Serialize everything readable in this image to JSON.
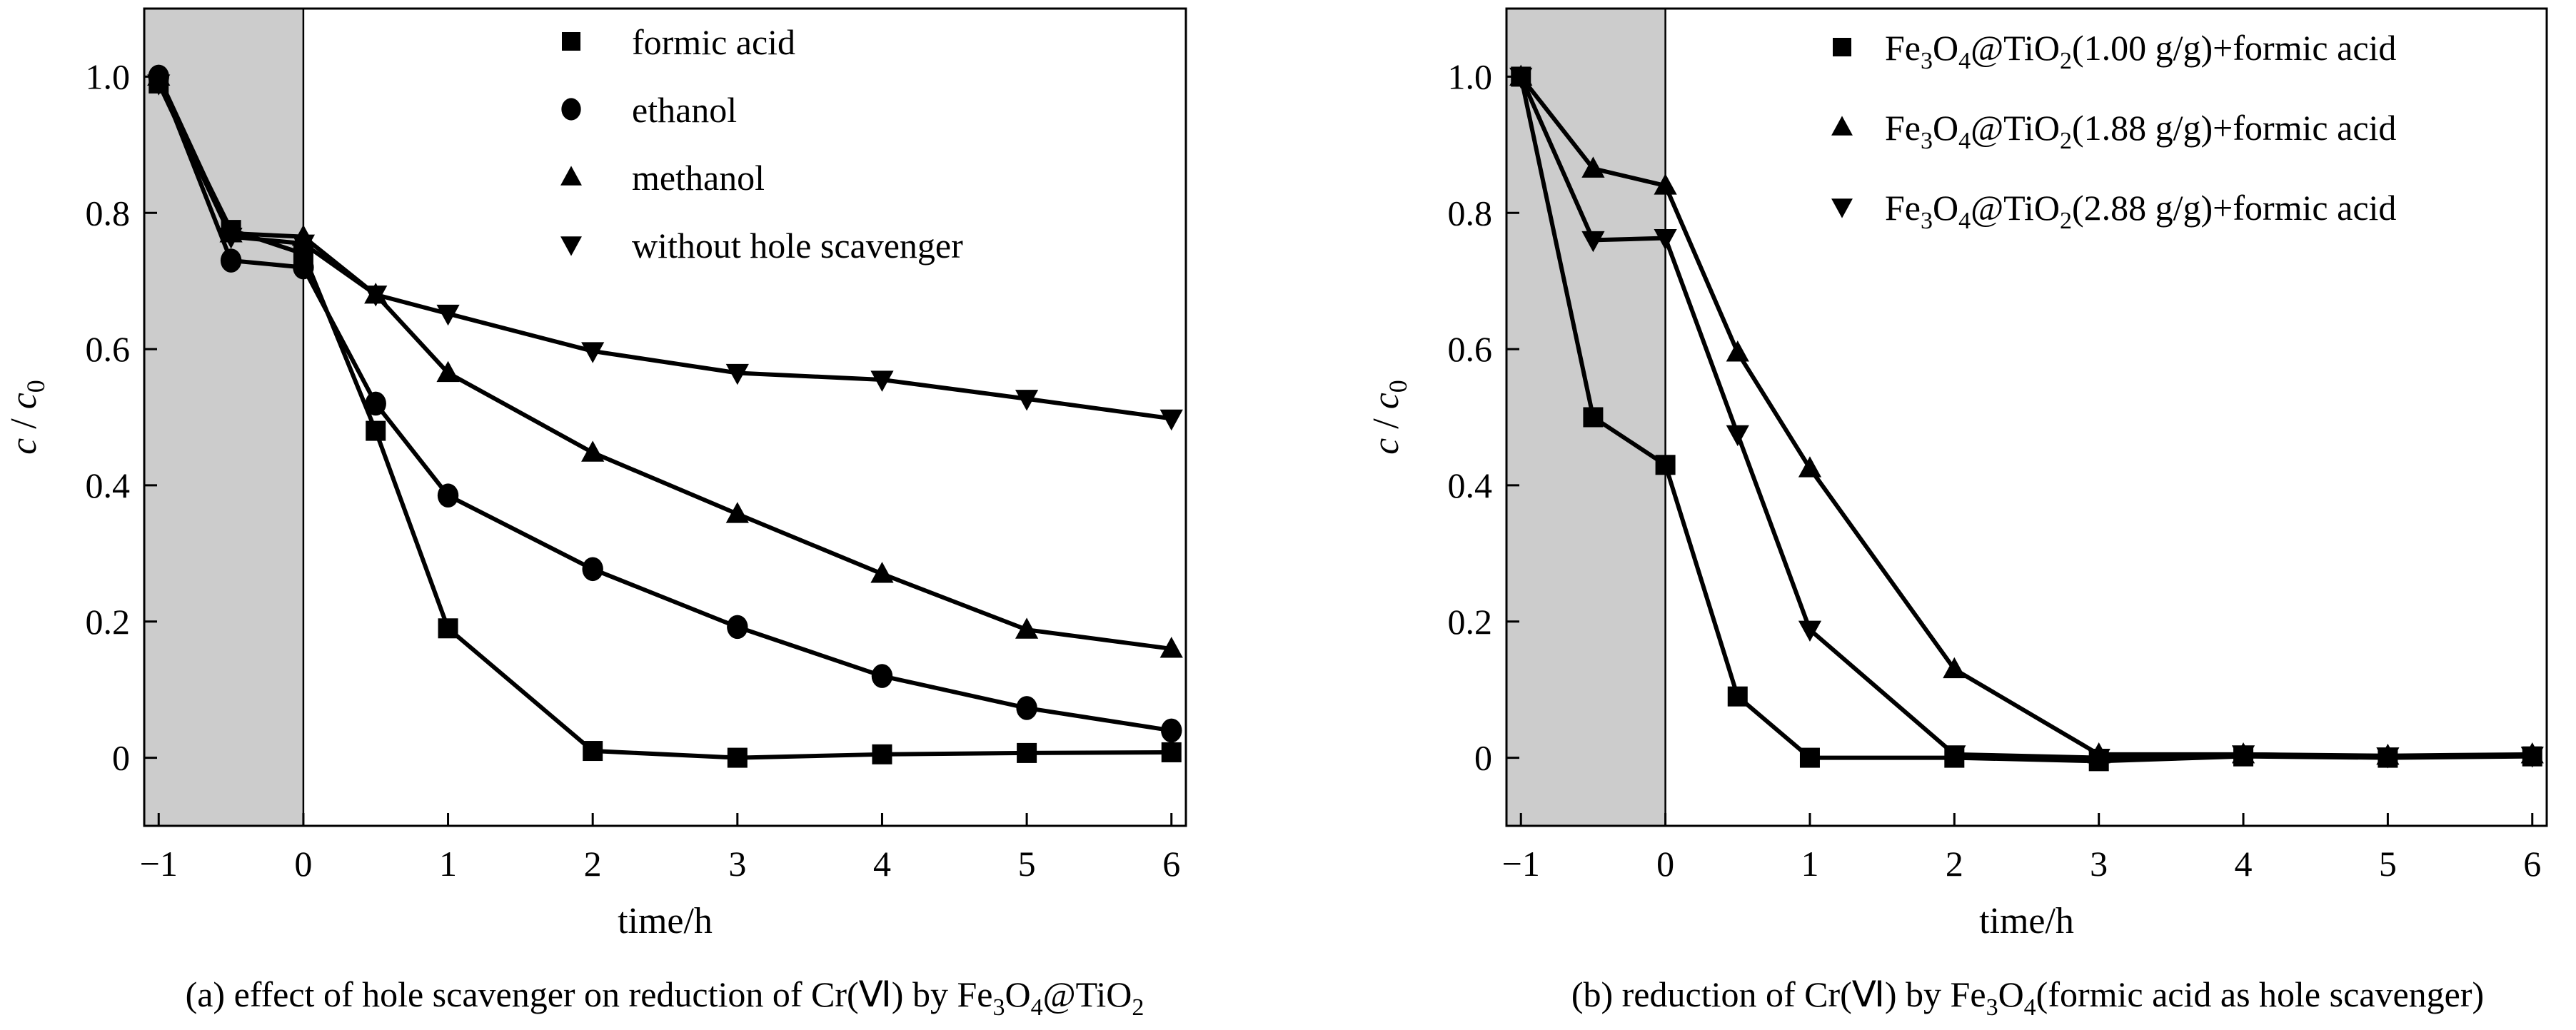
{
  "chart_data": [
    {
      "type": "line",
      "panel": "a",
      "caption": {
        "prefix": "(a) effect of hole scavenger on reduction of Cr(",
        "roman": "Ⅵ",
        "suffix": ") by Fe",
        "sub1": "3",
        "mid": "O",
        "sub2": "4",
        "tail": "@TiO",
        "sub3": "2",
        "end": ""
      },
      "xlabel": "time/h",
      "ylabel_main": "c",
      "ylabel_sep": " / ",
      "ylabel_sub_var": "c",
      "ylabel_sub": "0",
      "xlim": [
        -1.1,
        6.1
      ],
      "ylim": [
        -0.1,
        1.1
      ],
      "shaded_region": [
        -1.1,
        0
      ],
      "shade_color": "#cccccc",
      "xticks": [
        -1,
        0,
        1,
        2,
        3,
        4,
        5,
        6
      ],
      "xtick_labels": [
        "−1",
        "0",
        "1",
        "2",
        "3",
        "4",
        "5",
        "6"
      ],
      "yticks": [
        0,
        0.2,
        0.4,
        0.6,
        0.8,
        1.0
      ],
      "ytick_labels": [
        "0",
        "0.2",
        "0.4",
        "0.6",
        "0.8",
        "1.0"
      ],
      "x": [
        -1,
        -0.5,
        0,
        0.5,
        1,
        2,
        3,
        4,
        5,
        6
      ],
      "legend_position": "top-right",
      "series": [
        {
          "name": "formic acid",
          "marker": "square",
          "values": [
            0.99,
            0.775,
            0.74,
            0.48,
            0.19,
            0.01,
            0.0,
            0.005,
            0.007,
            0.008
          ]
        },
        {
          "name": "ethanol",
          "marker": "circle",
          "values": [
            1.0,
            0.73,
            0.72,
            0.52,
            0.385,
            0.277,
            0.192,
            0.12,
            0.073,
            0.04
          ]
        },
        {
          "name": "methanol",
          "marker": "triangle-up",
          "values": [
            1.0,
            0.77,
            0.765,
            0.68,
            0.565,
            0.448,
            0.358,
            0.27,
            0.188,
            0.16
          ]
        },
        {
          "name": "without hole scavenger",
          "marker": "triangle-down",
          "values": [
            0.99,
            0.765,
            0.755,
            0.68,
            0.652,
            0.597,
            0.565,
            0.555,
            0.527,
            0.498
          ]
        }
      ]
    },
    {
      "type": "line",
      "panel": "b",
      "caption": {
        "prefix": "(b) reduction of Cr(",
        "roman": "Ⅵ",
        "suffix": ") by Fe",
        "sub1": "3",
        "mid": "O",
        "sub2": "4",
        "tail": "(formic acid as hole scavenger)",
        "sub3": "",
        "end": ""
      },
      "xlabel": "time/h",
      "ylabel_main": "c",
      "ylabel_sep": " / ",
      "ylabel_sub_var": "c",
      "ylabel_sub": "0",
      "xlim": [
        -1.1,
        6.1
      ],
      "ylim": [
        -0.1,
        1.1
      ],
      "shaded_region": [
        -1.1,
        0
      ],
      "shade_color": "#cccccc",
      "xticks": [
        -1,
        0,
        1,
        2,
        3,
        4,
        5,
        6
      ],
      "xtick_labels": [
        "−1",
        "0",
        "1",
        "2",
        "3",
        "4",
        "5",
        "6"
      ],
      "yticks": [
        0,
        0.2,
        0.4,
        0.6,
        0.8,
        1.0
      ],
      "ytick_labels": [
        "0",
        "0.2",
        "0.4",
        "0.6",
        "0.8",
        "1.0"
      ],
      "x": [
        -1,
        -0.5,
        0,
        0.5,
        1,
        2,
        3,
        4,
        5,
        6
      ],
      "legend_position": "top-right",
      "series": [
        {
          "name": "Fe3O4@TiO2(1.00 g/g)+formic acid",
          "marker": "square",
          "label_parts": {
            "a": "Fe",
            "s1": "3",
            "b": "O",
            "s2": "4",
            "c": "@TiO",
            "s3": "2",
            "d": "(1.00 g/g)+formic acid"
          },
          "values": [
            1.0,
            0.5,
            0.43,
            0.09,
            0.0,
            0.0,
            -0.005,
            0.002,
            0.0,
            0.002
          ]
        },
        {
          "name": "Fe3O4@TiO2(1.88 g/g)+formic acid",
          "marker": "triangle-up",
          "label_parts": {
            "a": "Fe",
            "s1": "3",
            "b": "O",
            "s2": "4",
            "c": "@TiO",
            "s3": "2",
            "d": "(1.88 g/g)+formic acid"
          },
          "values": [
            1.0,
            0.865,
            0.84,
            0.595,
            0.425,
            0.13,
            0.005,
            0.005,
            0.003,
            0.005
          ]
        },
        {
          "name": "Fe3O4@TiO2(2.88 g/g)+formic acid",
          "marker": "triangle-down",
          "label_parts": {
            "a": "Fe",
            "s1": "3",
            "b": "O",
            "s2": "4",
            "c": "@TiO",
            "s3": "2",
            "d": "(2.88 g/g)+formic acid"
          },
          "values": [
            1.0,
            0.76,
            0.763,
            0.475,
            0.188,
            0.005,
            0.0,
            0.005,
            0.002,
            0.003
          ]
        }
      ]
    }
  ]
}
